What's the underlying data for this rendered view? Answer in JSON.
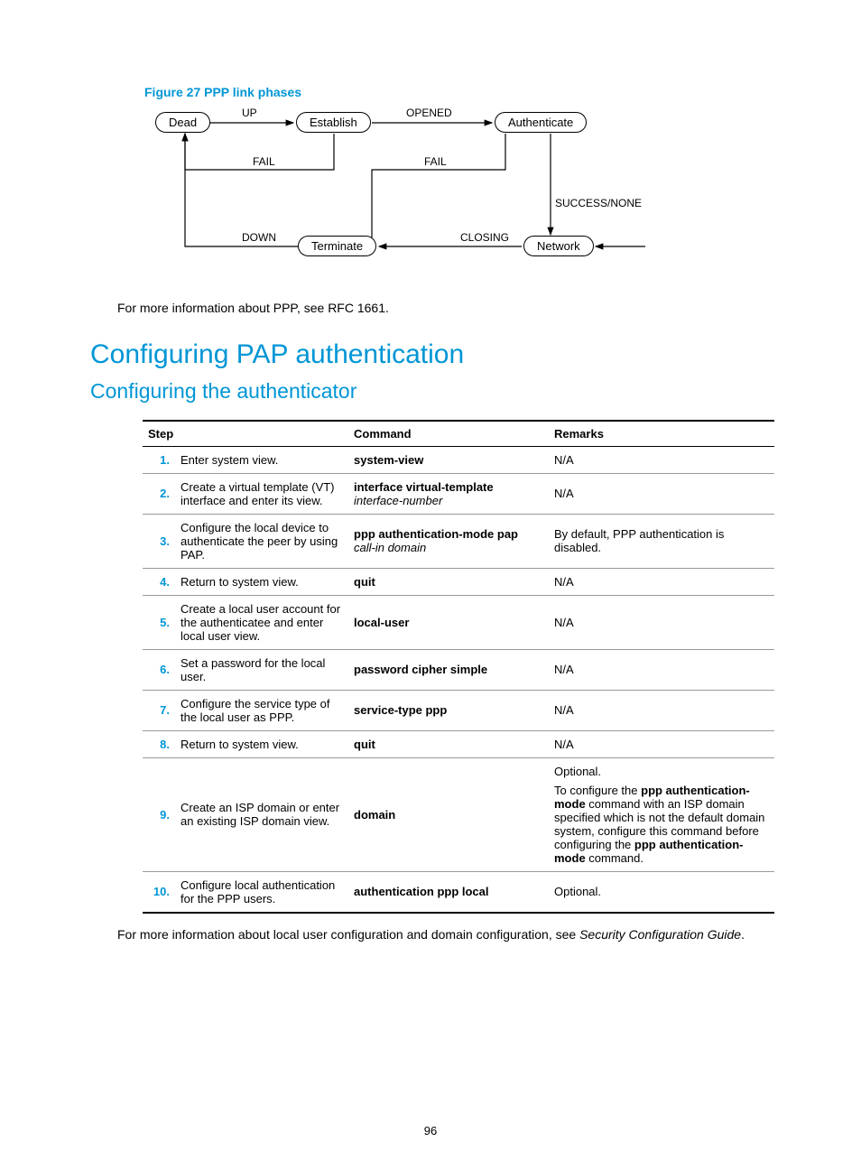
{
  "figure": {
    "caption": "Figure 27 PPP link phases",
    "nodes": {
      "dead": "Dead",
      "establish": "Establish",
      "authenticate": "Authenticate",
      "terminate": "Terminate",
      "network": "Network"
    },
    "edge_labels": {
      "up": "UP",
      "opened": "OPENED",
      "fail1": "FAIL",
      "fail2": "FAIL",
      "success": "SUCCESS/NONE",
      "down": "DOWN",
      "closing": "CLOSING"
    },
    "style": {
      "caption_color": "#0096d6",
      "node_border": "#000000",
      "node_bg": "#ffffff",
      "arrow_color": "#000000",
      "font_size_node": 13,
      "font_size_label": 12,
      "border_radius": 12
    }
  },
  "paragraphs": {
    "after_figure": "For more information about PPP, see RFC 1661.",
    "after_table_pre": "For more information about local user configuration and domain configuration, see ",
    "after_table_em": "Security Configuration Guide",
    "after_table_post": "."
  },
  "headings": {
    "h1": "Configuring PAP authentication",
    "h2": "Configuring the authenticator"
  },
  "table": {
    "headers": {
      "step": "Step",
      "command": "Command",
      "remarks": "Remarks"
    },
    "rows": [
      {
        "n": "1.",
        "step": "Enter system view.",
        "cmd_bold": "system-view",
        "cmd_italic": "",
        "remarks": "N/A"
      },
      {
        "n": "2.",
        "step": "Create a virtual template (VT) interface and enter its view.",
        "cmd_bold": "interface virtual-template",
        "cmd_italic": "interface-number",
        "remarks": "N/A"
      },
      {
        "n": "3.",
        "step": "Configure the local device to authenticate the peer by using PAP.",
        "cmd_bold": "ppp authentication-mode pap",
        "cmd_italic": "call-in  domain",
        "remarks": "By default, PPP authentication is disabled."
      },
      {
        "n": "4.",
        "step": "Return to system view.",
        "cmd_bold": "quit",
        "cmd_italic": "",
        "remarks": "N/A"
      },
      {
        "n": "5.",
        "step": "Create a local user account for the authenticatee and enter local user view.",
        "cmd_bold": "local-user",
        "cmd_italic": "",
        "remarks": "N/A"
      },
      {
        "n": "6.",
        "step": "Set a password for the local user.",
        "cmd_bold": "password  cipher  simple",
        "cmd_italic": "",
        "remarks": "N/A"
      },
      {
        "n": "7.",
        "step": "Configure the service type of the local user as PPP.",
        "cmd_bold": "service-type ppp",
        "cmd_italic": "",
        "remarks": "N/A"
      },
      {
        "n": "8.",
        "step": "Return to system view.",
        "cmd_bold": "quit",
        "cmd_italic": "",
        "remarks": "N/A"
      },
      {
        "n": "9.",
        "step": "Create an ISP domain or enter an existing ISP domain view.",
        "cmd_bold": "domain",
        "cmd_italic": "",
        "remarks_special": true
      },
      {
        "n": "10.",
        "step": "Configure local authentication for the PPP users.",
        "cmd_bold": "authentication ppp local",
        "cmd_italic": "",
        "remarks": "Optional."
      }
    ],
    "row9_remarks": {
      "line1": "Optional.",
      "p_pre": "To configure the ",
      "p_b1": "ppp authentication-mode",
      "p_mid": " command with an ISP domain specified which is not the default domain system, configure this command before configuring the ",
      "p_b2": "ppp authentication-mode",
      "p_post": " command."
    }
  },
  "page_number": "96",
  "colors": {
    "accent": "#0096d6",
    "text": "#000000",
    "rule_light": "#999999",
    "rule_heavy": "#000000",
    "background": "#ffffff"
  }
}
